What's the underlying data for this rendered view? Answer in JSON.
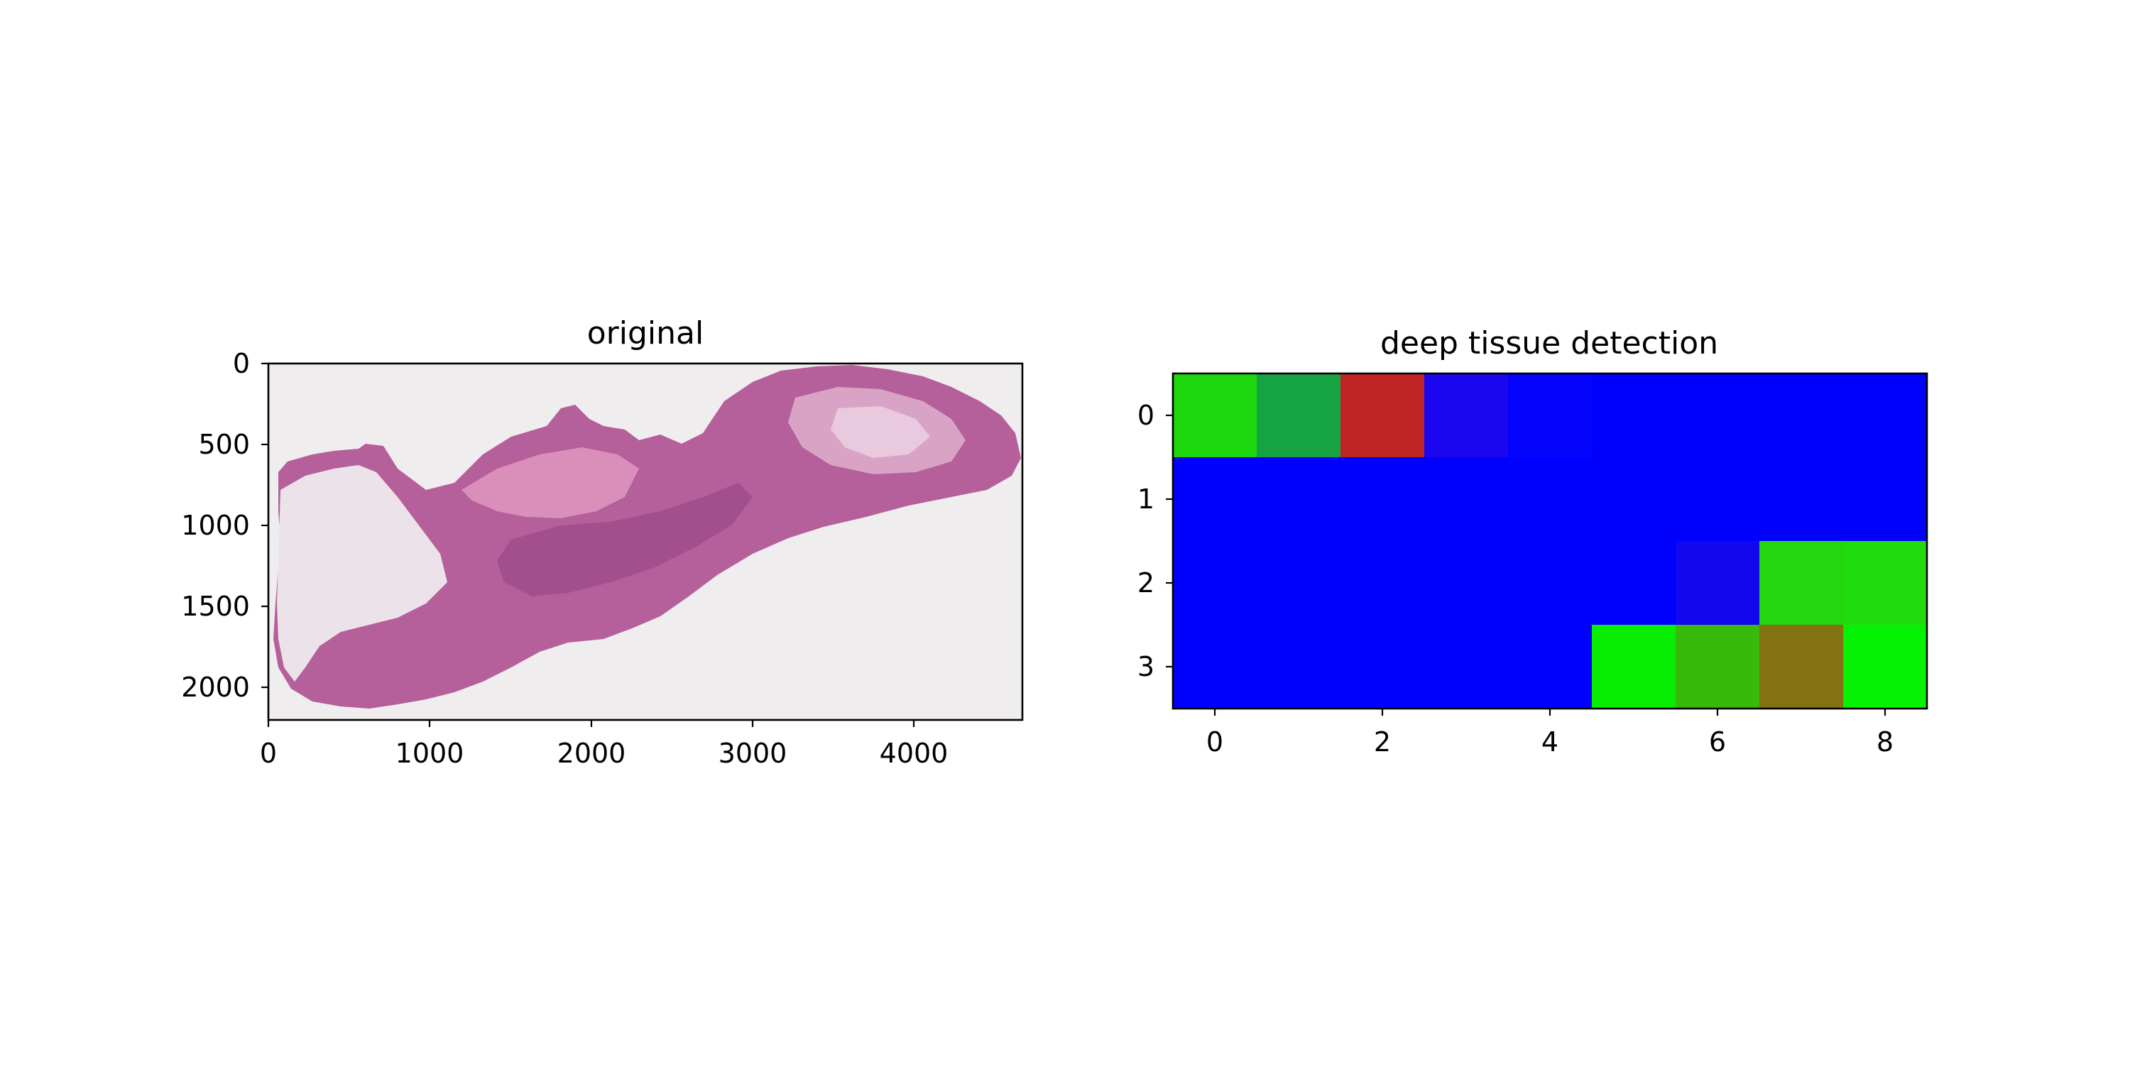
{
  "chart_data": [
    {
      "type": "image",
      "title": "original",
      "xlim": [
        0,
        4670
      ],
      "ylim": [
        2200,
        0
      ],
      "x_ticks": [
        "0",
        "1000",
        "2000",
        "3000",
        "4000"
      ],
      "x_tick_values": [
        0,
        1000,
        2000,
        3000,
        4000
      ],
      "y_ticks": [
        "0",
        "500",
        "1000",
        "1500",
        "2000"
      ],
      "y_tick_values": [
        0,
        500,
        1000,
        1500,
        2000
      ],
      "background_color": "#efedee",
      "tissue_colors": [
        "#b55f9b",
        "#c97fb5",
        "#e6c2dc"
      ]
    },
    {
      "type": "heatmap",
      "title": "deep tissue detection",
      "x_ticks": [
        "0",
        "2",
        "4",
        "6",
        "8"
      ],
      "x_tick_values": [
        0,
        2,
        4,
        6,
        8
      ],
      "y_ticks": [
        "0",
        "1",
        "2",
        "3"
      ],
      "y_tick_values": [
        0,
        1,
        2,
        3
      ],
      "rows": 4,
      "cols": 9,
      "cells": [
        [
          "#1ed70f",
          "#16a343",
          "#be2522",
          "#1a06ef",
          "#0503fb",
          "#0000ff",
          "#0000ff",
          "#0000ff",
          "#0000ff"
        ],
        [
          "#0000ff",
          "#0000ff",
          "#0000ff",
          "#0000ff",
          "#0000ff",
          "#0000ff",
          "#0000ff",
          "#0000ff",
          "#0000ff"
        ],
        [
          "#0000ff",
          "#0000ff",
          "#0000ff",
          "#0000ff",
          "#0000ff",
          "#0000ff",
          "#1108ee",
          "#23d60d",
          "#20dc0e"
        ],
        [
          "#0000ff",
          "#0000ff",
          "#0000ff",
          "#0000ff",
          "#0000ff",
          "#08ee02",
          "#38ba0d",
          "#827213",
          "#06f205"
        ]
      ]
    }
  ]
}
